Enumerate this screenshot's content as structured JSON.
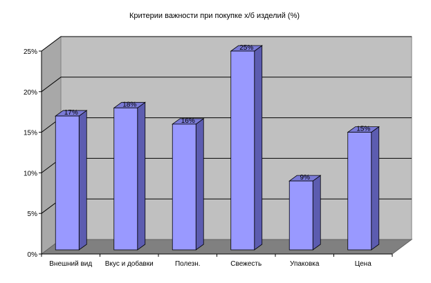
{
  "chart_data": {
    "type": "bar",
    "title": "Критерии важности при покупке х/б изделий (%)",
    "categories": [
      "Внешний вид",
      "Вкус и добавки",
      "Полезн.",
      "Свежесть",
      "Упаковка",
      "Цена"
    ],
    "values": [
      17,
      18,
      16,
      25,
      9,
      15
    ],
    "data_labels": [
      "17%",
      "18%",
      "16%",
      "25%",
      "9%",
      "15%"
    ],
    "ylim": [
      0,
      25
    ],
    "yticks": [
      0,
      5,
      10,
      15,
      20,
      25
    ],
    "ytick_labels": [
      "0%",
      "5%",
      "10%",
      "15%",
      "20%",
      "25%"
    ],
    "xlabel": "",
    "ylabel": "",
    "grid": true,
    "three_d": true,
    "legend": "none",
    "colors": {
      "bar_front": "#9999ff",
      "bar_side": "#5c5cb0",
      "bar_top": "#7a7ad6",
      "back_wall": "#c0c0c0",
      "side_wall": "#a8a8a8",
      "floor": "#808080",
      "gridline": "#000000"
    }
  }
}
